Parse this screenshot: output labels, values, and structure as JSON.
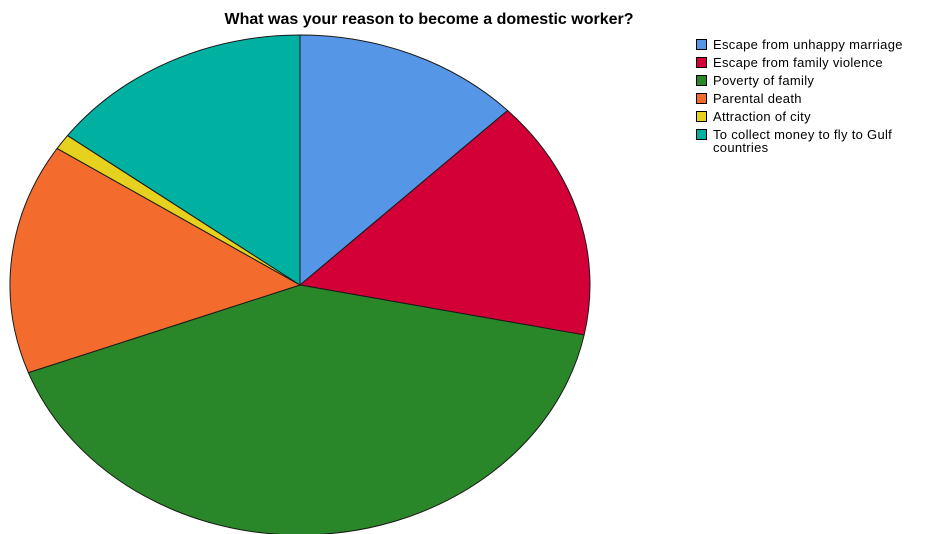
{
  "chart_data": {
    "type": "pie",
    "title": "What was your reason to become a domestic worker?",
    "categories": [
      "Escape from unhappy marriage",
      "Escape from family violence",
      "Poverty of family",
      "Parental death",
      "Attraction of city",
      "To collect money to fly to Gulf countries"
    ],
    "values": [
      12.7,
      15.5,
      41.1,
      14.9,
      1.0,
      14.8
    ],
    "unit": "percent",
    "colors": [
      "#5596E6",
      "#D20036",
      "#2A8729",
      "#F36C2D",
      "#E5D11E",
      "#00B0A1"
    ],
    "legend": "right",
    "start_angle_deg": 0,
    "direction": "clockwise"
  },
  "legend_items": [
    {
      "label": "Escape from unhappy marriage",
      "color": "#5596E6"
    },
    {
      "label": "Escape from family violence",
      "color": "#D20036"
    },
    {
      "label": "Poverty of family",
      "color": "#2A8729"
    },
    {
      "label": "Parental death",
      "color": "#F36C2D"
    },
    {
      "label": "Attraction of city",
      "color": "#E5D11E"
    },
    {
      "label": "To collect money to fly to Gulf countries",
      "color": "#00B0A1"
    }
  ]
}
